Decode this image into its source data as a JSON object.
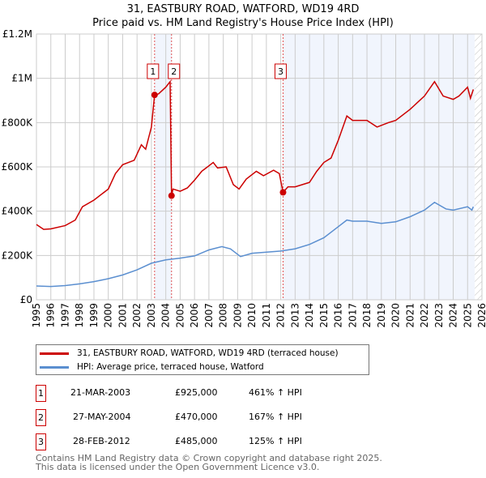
{
  "title_line1": "31, EASTBURY ROAD, WATFORD, WD19 4RD",
  "title_line2": "Price paid vs. HM Land Registry's House Price Index (HPI)",
  "chart_data": {
    "type": "line",
    "title": "31, EASTBURY ROAD, WATFORD, WD19 4RD — Price paid vs. HM Land Registry's House Price Index (HPI)",
    "xlim": [
      1995,
      2026
    ],
    "ylim": [
      0,
      1200000
    ],
    "x_ticks": [
      "1995",
      "1996",
      "1997",
      "1998",
      "1999",
      "2000",
      "2001",
      "2002",
      "2003",
      "2004",
      "2005",
      "2006",
      "2007",
      "2008",
      "2009",
      "2010",
      "2011",
      "2012",
      "2013",
      "2014",
      "2015",
      "2016",
      "2017",
      "2018",
      "2019",
      "2020",
      "2021",
      "2022",
      "2023",
      "2024",
      "2025",
      "2026"
    ],
    "y_ticks": [
      {
        "v": 0,
        "label": "£0"
      },
      {
        "v": 200000,
        "label": "£200K"
      },
      {
        "v": 400000,
        "label": "£400K"
      },
      {
        "v": 600000,
        "label": "£600K"
      },
      {
        "v": 800000,
        "label": "£800K"
      },
      {
        "v": 1000000,
        "label": "£1M"
      },
      {
        "v": 1200000,
        "label": "£1.2M"
      }
    ],
    "grid": true,
    "shaded_ranges": [
      [
        2003.22,
        2004.4
      ],
      [
        2012.16,
        2025.5
      ]
    ],
    "hatched_range": [
      2025.5,
      2026
    ],
    "series": [
      {
        "name": "31, EASTBURY ROAD, WATFORD, WD19 4RD (terraced house)",
        "color": "#cc0000",
        "points": [
          [
            1995,
            340
          ],
          [
            1995.5,
            318
          ],
          [
            1996,
            320
          ],
          [
            1997,
            335
          ],
          [
            1997.7,
            360
          ],
          [
            1998.2,
            420
          ],
          [
            1999,
            450
          ],
          [
            2000,
            500
          ],
          [
            2000.5,
            570
          ],
          [
            2001,
            610
          ],
          [
            2001.8,
            630
          ],
          [
            2002.3,
            700
          ],
          [
            2002.6,
            680
          ],
          [
            2003,
            780
          ],
          [
            2003.22,
            925
          ],
          [
            2003.5,
            930
          ],
          [
            2004,
            960
          ],
          [
            2004.3,
            985
          ],
          [
            2004.4,
            470
          ],
          [
            2004.5,
            500
          ],
          [
            2005,
            490
          ],
          [
            2005.5,
            505
          ],
          [
            2006,
            540
          ],
          [
            2006.5,
            580
          ],
          [
            2007.3,
            620
          ],
          [
            2007.6,
            595
          ],
          [
            2008.2,
            600
          ],
          [
            2008.7,
            520
          ],
          [
            2009.1,
            500
          ],
          [
            2009.6,
            545
          ],
          [
            2010.3,
            580
          ],
          [
            2010.8,
            560
          ],
          [
            2011.5,
            585
          ],
          [
            2011.9,
            570
          ],
          [
            2012.16,
            485
          ],
          [
            2012.5,
            510
          ],
          [
            2013,
            510
          ],
          [
            2014,
            530
          ],
          [
            2014.5,
            580
          ],
          [
            2015,
            620
          ],
          [
            2015.5,
            640
          ],
          [
            2016,
            720
          ],
          [
            2016.6,
            830
          ],
          [
            2017,
            810
          ],
          [
            2018,
            810
          ],
          [
            2018.7,
            780
          ],
          [
            2019.5,
            800
          ],
          [
            2020,
            810
          ],
          [
            2021,
            860
          ],
          [
            2021.5,
            890
          ],
          [
            2022,
            920
          ],
          [
            2022.7,
            985
          ],
          [
            2023.3,
            920
          ],
          [
            2024,
            905
          ],
          [
            2024.4,
            920
          ],
          [
            2025,
            960
          ],
          [
            2025.2,
            910
          ],
          [
            2025.4,
            950
          ]
        ]
      },
      {
        "name": "HPI: Average price, terraced house, Watford",
        "color": "#5b8fd0",
        "points": [
          [
            1995,
            62
          ],
          [
            1996,
            60
          ],
          [
            1997,
            64
          ],
          [
            1998,
            72
          ],
          [
            1999,
            82
          ],
          [
            2000,
            95
          ],
          [
            2001,
            112
          ],
          [
            2002,
            135
          ],
          [
            2003,
            165
          ],
          [
            2004,
            180
          ],
          [
            2005,
            188
          ],
          [
            2006,
            198
          ],
          [
            2007,
            225
          ],
          [
            2007.9,
            240
          ],
          [
            2008.5,
            230
          ],
          [
            2009.2,
            195
          ],
          [
            2010,
            210
          ],
          [
            2011,
            215
          ],
          [
            2012,
            220
          ],
          [
            2013,
            230
          ],
          [
            2014,
            250
          ],
          [
            2015,
            280
          ],
          [
            2016,
            330
          ],
          [
            2016.6,
            360
          ],
          [
            2017,
            355
          ],
          [
            2018,
            355
          ],
          [
            2019,
            345
          ],
          [
            2020,
            352
          ],
          [
            2021,
            375
          ],
          [
            2022,
            405
          ],
          [
            2022.7,
            440
          ],
          [
            2023.5,
            410
          ],
          [
            2024,
            405
          ],
          [
            2025,
            420
          ],
          [
            2025.3,
            405
          ],
          [
            2025.4,
            420
          ]
        ]
      }
    ],
    "sales": [
      {
        "n": "1",
        "date": "21-MAR-2003",
        "x": 2003.22,
        "price": "£925,000",
        "price_v": 925,
        "hpi": "461% ↑ HPI"
      },
      {
        "n": "2",
        "date": "27-MAY-2004",
        "x": 2004.4,
        "price": "£470,000",
        "price_v": 470,
        "hpi": "167% ↑ HPI"
      },
      {
        "n": "3",
        "date": "28-FEB-2012",
        "x": 2012.16,
        "price": "£485,000",
        "price_v": 485,
        "hpi": "125% ↑ HPI"
      }
    ]
  },
  "footer_line1": "Contains HM Land Registry data © Crown copyright and database right 2025.",
  "footer_line2": "This data is licensed under the Open Government Licence v3.0."
}
